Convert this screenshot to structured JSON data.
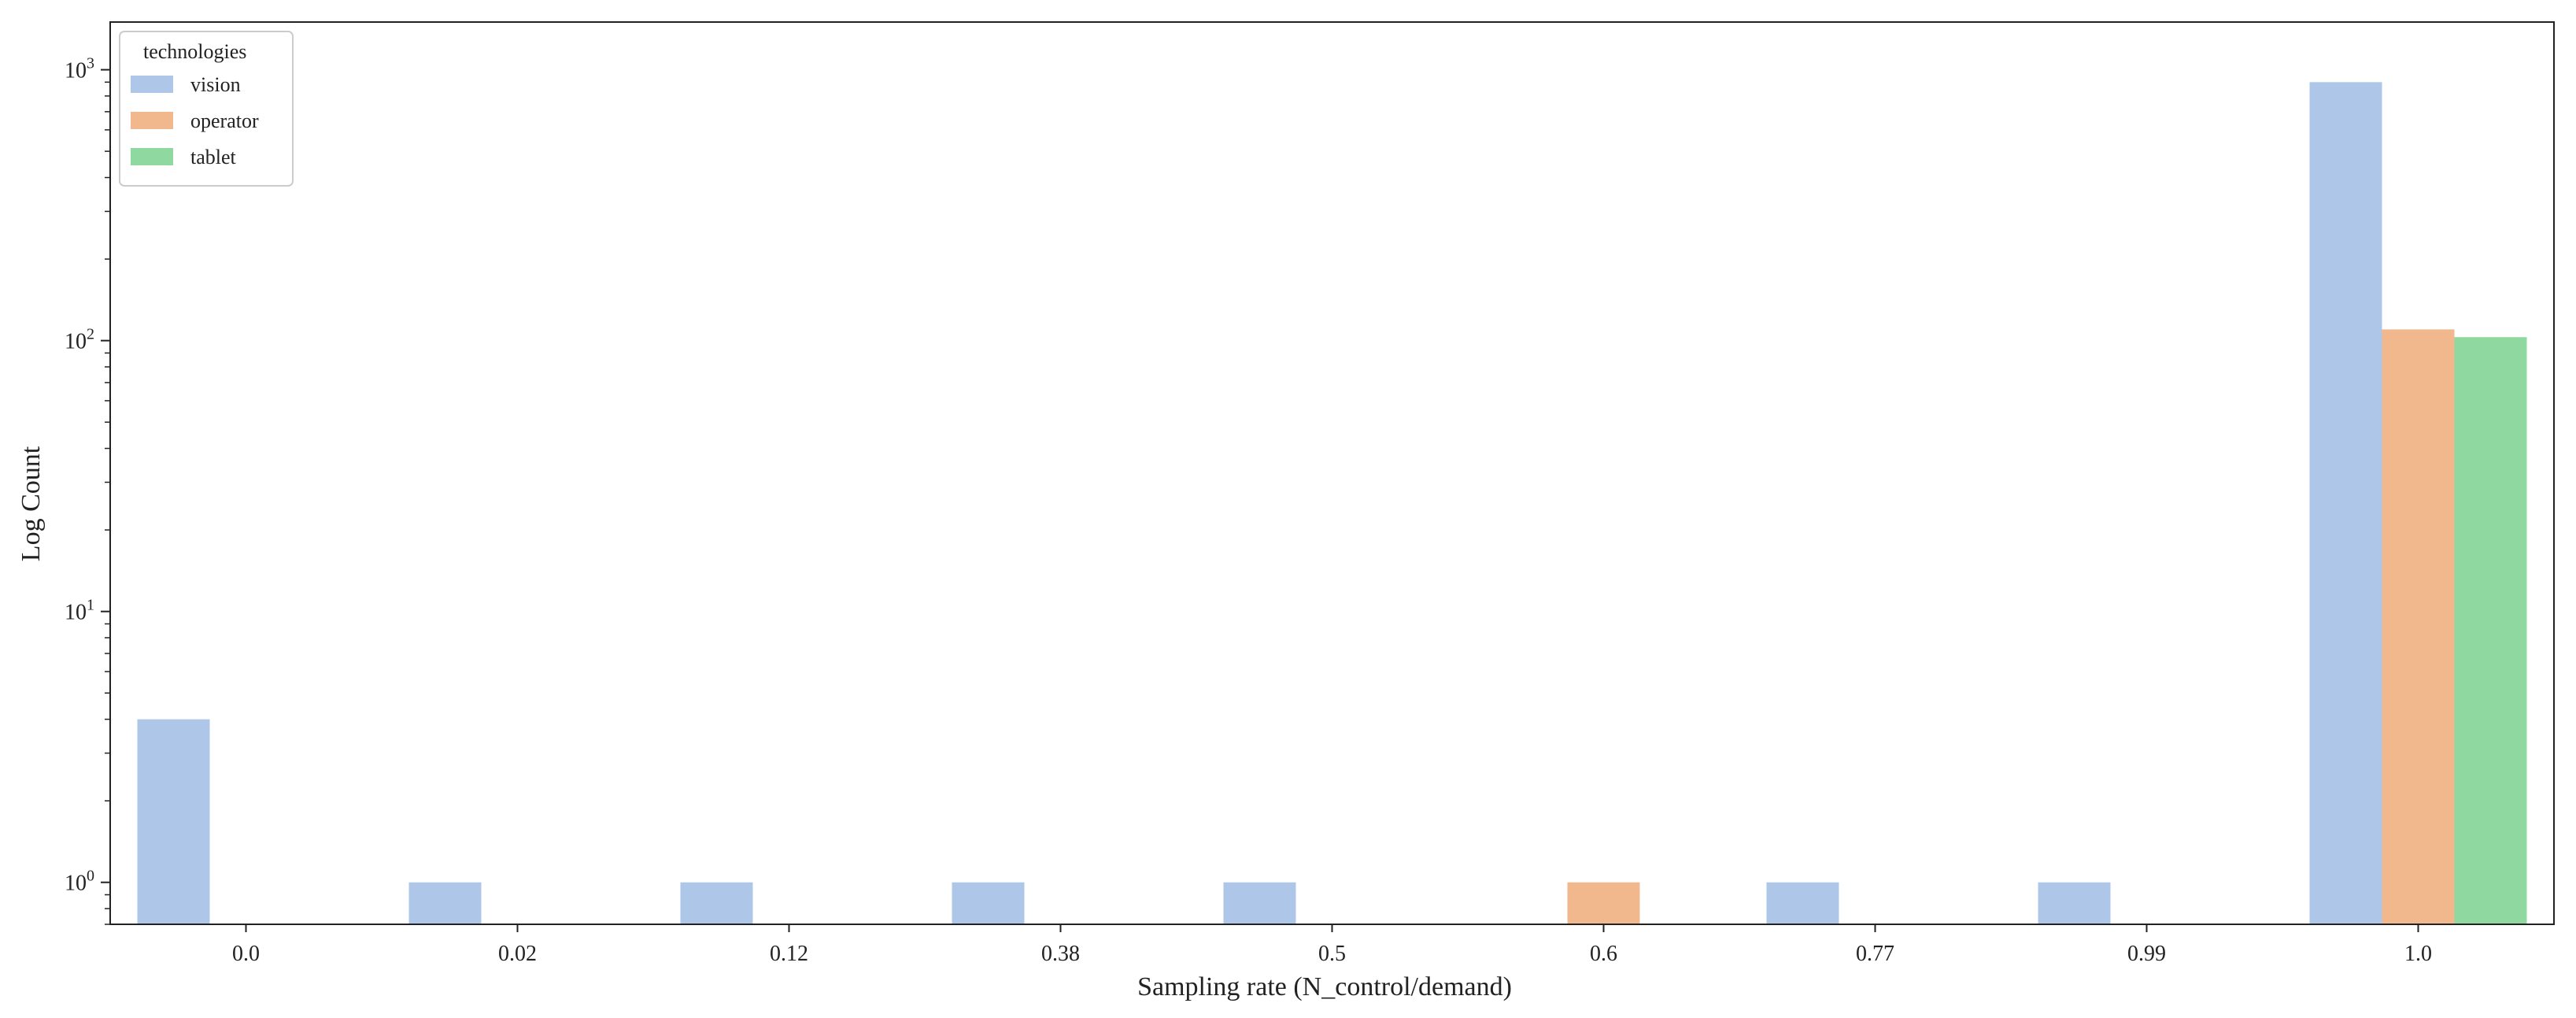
{
  "chart_data": {
    "type": "bar",
    "xlabel": "Sampling rate (N_control/demand)",
    "ylabel": "Log Count",
    "yscale": "log",
    "ylim": [
      0.7,
      1500
    ],
    "yticks": [
      {
        "value": 1,
        "base": "10",
        "exp": "0"
      },
      {
        "value": 10,
        "base": "10",
        "exp": "1"
      },
      {
        "value": 100,
        "base": "10",
        "exp": "2"
      },
      {
        "value": 1000,
        "base": "10",
        "exp": "3"
      }
    ],
    "categories": [
      "0.0",
      "0.02",
      "0.12",
      "0.38",
      "0.5",
      "0.6",
      "0.77",
      "0.99",
      "1.0"
    ],
    "series": [
      {
        "name": "vision",
        "color": "#aec7e8",
        "values": [
          4,
          1,
          1,
          1,
          1,
          null,
          1,
          1,
          900
        ]
      },
      {
        "name": "operator",
        "color": "#f0b88c",
        "values": [
          null,
          null,
          null,
          null,
          null,
          1,
          null,
          null,
          110
        ]
      },
      {
        "name": "tablet",
        "color": "#8fd9a0",
        "values": [
          null,
          null,
          null,
          null,
          null,
          null,
          null,
          null,
          103
        ]
      }
    ],
    "legend": {
      "title": "technologies",
      "position": "top-left"
    },
    "grid": false
  }
}
